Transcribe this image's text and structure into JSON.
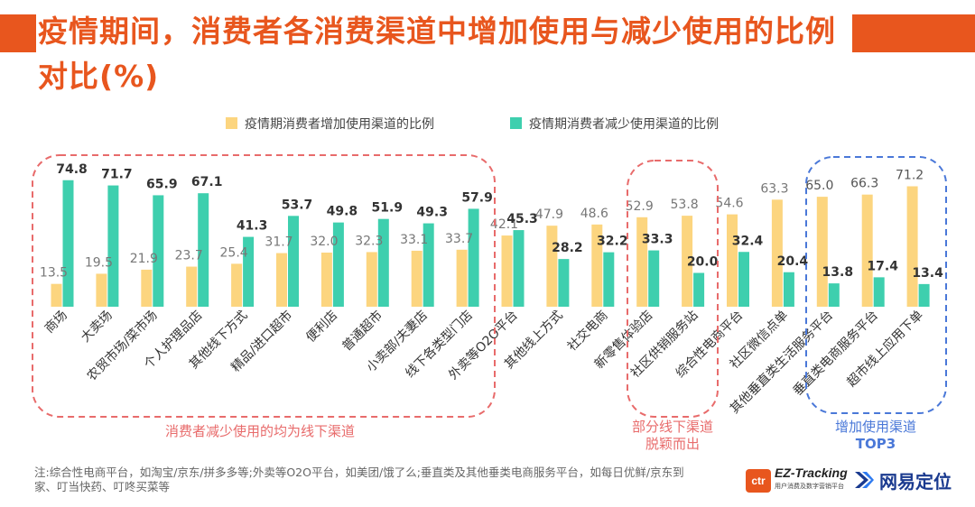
{
  "title": "疫情期间，消费者各消费渠道中增加使用与减少使用的比例对比(%)",
  "colors": {
    "accent": "#e8561e",
    "increase": "#fcd57f",
    "decrease": "#3ecfae",
    "red_group": "#e86b6b",
    "blue_group": "#4a78d8"
  },
  "chart_data": {
    "type": "bar",
    "categories": [
      "商场",
      "大卖场",
      "农贸市场/菜市场",
      "个人护理品店",
      "其他线下方式",
      "精品/进口超市",
      "便利店",
      "普通超市",
      "小卖部/夫妻店",
      "线下各类型门店",
      "外卖等O2O平台",
      "其他线上方式",
      "社交电商",
      "新零售体验店",
      "社区供销服务站",
      "综合性电商平台",
      "社区微信点单",
      "其他垂直类生活服务平台",
      "垂直类电商服务平台",
      "超市线上应用下单"
    ],
    "series": [
      {
        "name": "疫情期消费者增加使用渠道的比例",
        "values": [
          13.5,
          19.5,
          21.9,
          23.7,
          25.4,
          31.7,
          32.0,
          32.3,
          33.1,
          33.7,
          42.1,
          47.9,
          48.6,
          52.9,
          53.8,
          54.6,
          63.3,
          65.0,
          66.3,
          71.2
        ]
      },
      {
        "name": "疫情期消费者减少使用渠道的比例",
        "values": [
          74.8,
          71.7,
          65.9,
          67.1,
          41.3,
          53.7,
          49.8,
          51.9,
          49.3,
          57.9,
          45.3,
          28.2,
          32.2,
          33.3,
          20.0,
          32.4,
          20.4,
          13.8,
          17.4,
          13.4
        ]
      }
    ],
    "ylim": [
      0,
      80
    ],
    "annotations": [
      {
        "label": "消费者减少使用的均为线下渠道",
        "range": [
          0,
          9
        ],
        "style": "red"
      },
      {
        "label": "部分线下渠道脱颖而出",
        "lines": [
          "部分线下渠道",
          "脱颖而出"
        ],
        "range": [
          13,
          14
        ],
        "style": "red"
      },
      {
        "label": "增加使用渠道TOP3",
        "lines": [
          "增加使用渠道",
          "TOP3"
        ],
        "range": [
          17,
          19
        ],
        "style": "blue"
      }
    ]
  },
  "footnote": "注:综合性电商平台，如淘宝/京东/拼多多等;外卖等O2O平台，如美团/饿了么;垂直类及其他垂类电商服务平台，如每日优鲜/京东到家、叮当快药、叮咚买菜等",
  "logos": {
    "ctr": "ctr",
    "ez_tracking": "EZ-Tracking",
    "ez_sub": "用户消费及数字营销平台",
    "ease": "网易定位"
  }
}
